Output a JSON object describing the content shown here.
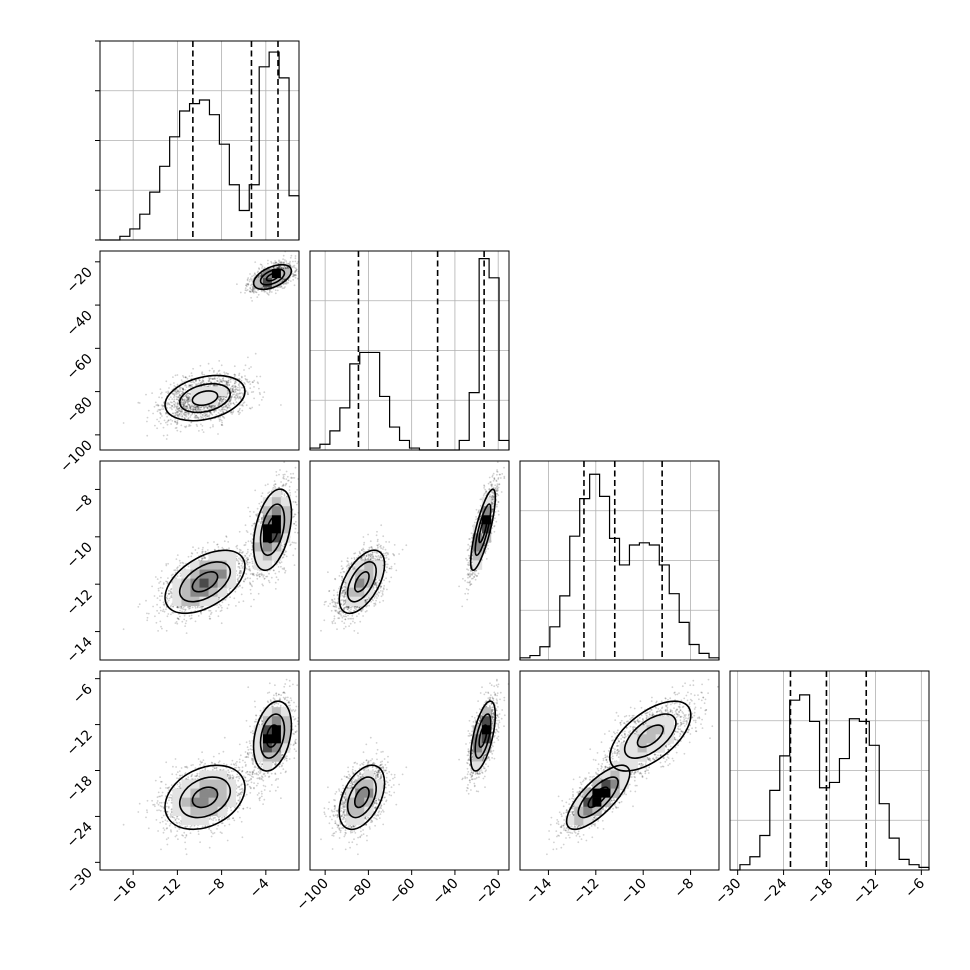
{
  "chart_data": {
    "type": "corner",
    "parameters": [
      {
        "range": [
          -19,
          -1
        ],
        "ticks": [
          -16,
          -12,
          -8,
          -4
        ],
        "tick_labels": [
          "−16",
          "−12",
          "−8",
          "−4"
        ],
        "hist": {
          "edges": [
            -19,
            -18.1,
            -17.2,
            -16.3,
            -15.4,
            -14.5,
            -13.6,
            -12.7,
            -11.8,
            -10.9,
            -10,
            -9.1,
            -8.2,
            -7.3,
            -6.4,
            -5.5,
            -4.6,
            -3.7,
            -2.8,
            -1.9,
            -1
          ],
          "counts": [
            0,
            0,
            1,
            3,
            7,
            13,
            20,
            28,
            35,
            37,
            38,
            34,
            26,
            15,
            8,
            15,
            47,
            51,
            44,
            12
          ]
        },
        "quantiles": [
          -10.6,
          -5.3,
          -2.9
        ],
        "hist_max": 54
      },
      {
        "range": [
          -107,
          -15
        ],
        "ticks": [
          -100,
          -80,
          -60,
          -40,
          -20
        ],
        "tick_labels": [
          "−100",
          "−80",
          "−60",
          "−40",
          "−20"
        ],
        "hist": {
          "edges": [
            -107,
            -102.4,
            -97.8,
            -93.2,
            -88.6,
            -84,
            -79.4,
            -74.8,
            -70.2,
            -65.6,
            -61,
            -56.4,
            -51.8,
            -47.2,
            -42.6,
            -38,
            -33.4,
            -28.8,
            -24.2,
            -19.6,
            -15
          ],
          "counts": [
            1,
            3,
            10,
            22,
            45,
            51,
            51,
            28,
            12,
            5,
            1,
            0,
            0,
            0,
            0,
            5,
            30,
            100,
            90,
            5
          ]
        },
        "quantiles": [
          -84.6,
          -48,
          -26.5
        ],
        "hist_max": 104
      },
      {
        "range": [
          -15.2,
          -6.8
        ],
        "ticks": [
          -14,
          -12,
          -10,
          -8
        ],
        "tick_labels": [
          "−14",
          "−12",
          "−10",
          "−8"
        ],
        "hist": {
          "edges": [
            -15.2,
            -14.78,
            -14.36,
            -13.94,
            -13.52,
            -13.1,
            -12.68,
            -12.26,
            -11.84,
            -11.42,
            -11,
            -10.58,
            -10.16,
            -9.74,
            -9.32,
            -8.9,
            -8.48,
            -8.06,
            -7.64,
            -7.22,
            -6.8
          ],
          "counts": [
            1,
            2,
            6,
            15,
            29,
            56,
            73,
            84,
            74,
            55,
            43,
            52,
            53,
            52,
            43,
            30,
            17,
            7,
            3,
            1
          ]
        },
        "quantiles": [
          -12.5,
          -11.2,
          -9.2
        ],
        "hist_max": 90
      },
      {
        "range": [
          -31,
          -5
        ],
        "ticks": [
          -30,
          -24,
          -18,
          -12,
          -6
        ],
        "tick_labels": [
          "−30",
          "−24",
          "−18",
          "−12",
          "−6"
        ],
        "hist": {
          "edges": [
            -31,
            -29.7,
            -28.4,
            -27.1,
            -25.8,
            -24.5,
            -23.2,
            -21.9,
            -20.6,
            -19.3,
            -18,
            -16.7,
            -15.4,
            -14.1,
            -12.8,
            -11.5,
            -10.2,
            -8.9,
            -7.6,
            -6.3,
            -5
          ],
          "counts": [
            0,
            2,
            5,
            13,
            30,
            43,
            64,
            66,
            56,
            31,
            33,
            42,
            57,
            56,
            47,
            25,
            12,
            4,
            2,
            1
          ]
        },
        "quantiles": [
          -23.1,
          -18.4,
          -13.2
        ],
        "hist_max": 75
      }
    ],
    "modes": [
      {
        "mean": [
          -9.5,
          -83,
          -11.9,
          -21.5
        ],
        "sd": [
          1.9,
          5.5,
          0.7,
          2.2
        ],
        "weight": 0.55
      },
      {
        "mean": [
          -3.4,
          -27,
          -9.7,
          -13.5
        ],
        "sd": [
          0.9,
          3.0,
          0.9,
          2.4
        ],
        "weight": 0.45
      }
    ],
    "grid": true
  }
}
